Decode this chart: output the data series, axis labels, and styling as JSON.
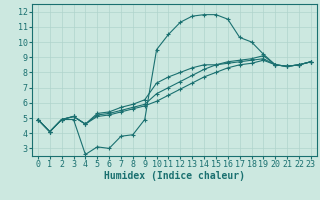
{
  "title": "",
  "xlabel": "Humidex (Indice chaleur)",
  "ylabel": "",
  "bg_color": "#cce8e0",
  "grid_color": "#b0d4cc",
  "line_color": "#1a7070",
  "x_ticks": [
    0,
    1,
    2,
    3,
    4,
    5,
    6,
    7,
    8,
    9,
    10,
    11,
    12,
    13,
    14,
    15,
    16,
    17,
    18,
    19,
    20,
    21,
    22,
    23
  ],
  "y_ticks": [
    3,
    4,
    5,
    6,
    7,
    8,
    9,
    10,
    11,
    12
  ],
  "ylim": [
    2.5,
    12.5
  ],
  "xlim": [
    -0.5,
    23.5
  ],
  "line1_x": [
    0,
    1,
    2,
    3,
    4,
    5,
    6,
    7,
    8,
    9,
    10,
    11,
    12,
    13,
    14,
    15,
    16,
    17,
    18,
    19,
    20,
    21,
    22,
    23
  ],
  "line1_y": [
    4.9,
    4.1,
    4.9,
    4.9,
    2.6,
    3.1,
    3.0,
    3.8,
    3.9,
    4.9,
    9.5,
    10.5,
    11.3,
    11.7,
    11.8,
    11.8,
    11.5,
    10.3,
    10.0,
    9.2,
    8.5,
    8.4,
    8.5,
    8.7
  ],
  "line2_x": [
    0,
    1,
    2,
    3,
    4,
    5,
    6,
    7,
    8,
    9,
    10,
    11,
    12,
    13,
    14,
    15,
    16,
    17,
    18,
    19,
    20,
    21,
    22,
    23
  ],
  "line2_y": [
    4.9,
    4.1,
    4.9,
    5.1,
    4.6,
    5.1,
    5.2,
    5.4,
    5.6,
    5.8,
    6.1,
    6.5,
    6.9,
    7.3,
    7.7,
    8.0,
    8.3,
    8.5,
    8.6,
    8.8,
    8.5,
    8.4,
    8.5,
    8.7
  ],
  "line3_x": [
    0,
    1,
    2,
    3,
    4,
    5,
    6,
    7,
    8,
    9,
    10,
    11,
    12,
    13,
    14,
    15,
    16,
    17,
    18,
    19,
    20,
    21,
    22,
    23
  ],
  "line3_y": [
    4.9,
    4.1,
    4.9,
    5.1,
    4.6,
    5.2,
    5.3,
    5.5,
    5.7,
    5.9,
    6.6,
    7.0,
    7.4,
    7.8,
    8.2,
    8.5,
    8.7,
    8.8,
    8.9,
    9.1,
    8.5,
    8.4,
    8.5,
    8.7
  ],
  "line4_x": [
    0,
    1,
    2,
    3,
    4,
    5,
    6,
    7,
    8,
    9,
    10,
    11,
    12,
    13,
    14,
    15,
    16,
    17,
    18,
    19,
    20,
    21,
    22,
    23
  ],
  "line4_y": [
    4.9,
    4.1,
    4.9,
    5.1,
    4.6,
    5.3,
    5.4,
    5.7,
    5.9,
    6.2,
    7.3,
    7.7,
    8.0,
    8.3,
    8.5,
    8.5,
    8.6,
    8.7,
    8.8,
    8.9,
    8.5,
    8.4,
    8.5,
    8.7
  ],
  "marker": "+",
  "markersize": 3,
  "linewidth": 0.8,
  "xlabel_fontsize": 7,
  "tick_fontsize": 6
}
